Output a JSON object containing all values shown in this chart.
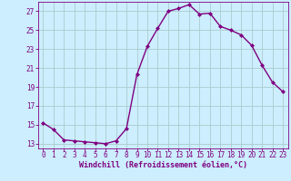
{
  "x": [
    0,
    1,
    2,
    3,
    4,
    5,
    6,
    7,
    8,
    9,
    10,
    11,
    12,
    13,
    14,
    15,
    16,
    17,
    18,
    19,
    20,
    21,
    22,
    23
  ],
  "y": [
    15.2,
    14.5,
    13.4,
    13.3,
    13.2,
    13.1,
    13.0,
    13.3,
    14.6,
    20.3,
    23.3,
    25.2,
    27.0,
    27.3,
    27.7,
    26.7,
    26.8,
    25.4,
    25.0,
    24.5,
    23.4,
    21.3,
    19.5,
    18.5
  ],
  "line_color": "#800080",
  "marker": "D",
  "marker_size": 2.0,
  "bg_color": "#cceeff",
  "grid_color": "#aacccc",
  "xlabel": "Windchill (Refroidissement éolien,°C)",
  "xlabel_color": "#800080",
  "tick_color": "#800080",
  "spine_color": "#800080",
  "ylim": [
    12.5,
    28.0
  ],
  "xlim": [
    -0.5,
    23.5
  ],
  "yticks": [
    13,
    15,
    17,
    19,
    21,
    23,
    25,
    27
  ],
  "xticks": [
    0,
    1,
    2,
    3,
    4,
    5,
    6,
    7,
    8,
    9,
    10,
    11,
    12,
    13,
    14,
    15,
    16,
    17,
    18,
    19,
    20,
    21,
    22,
    23
  ],
  "tick_fontsize": 5.5,
  "xlabel_fontsize": 6.0,
  "linewidth": 1.0
}
